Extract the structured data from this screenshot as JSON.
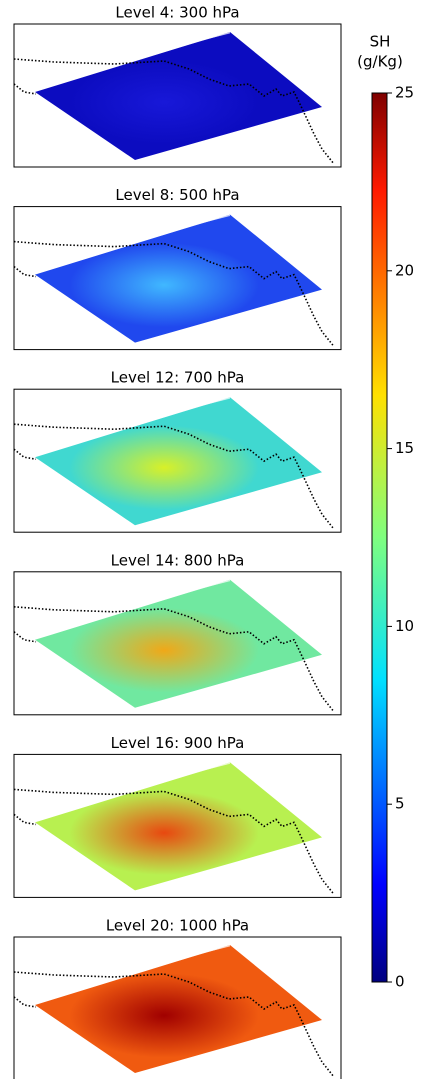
{
  "chart_data": {
    "type": "heatmap-panels",
    "panels": [
      {
        "title": "Level 4: 300 hPa"
      },
      {
        "title": "Level 8: 500 hPa"
      },
      {
        "title": "Level 12: 700 hPa"
      },
      {
        "title": "Level 14: 800 hPa"
      },
      {
        "title": "Level 16: 900 hPa"
      },
      {
        "title": "Level 20: 1000 hPa"
      }
    ],
    "colorbar": {
      "title": [
        "SH",
        "(g/Kg)"
      ],
      "lim": [
        0,
        25
      ],
      "ticks": [
        0,
        5,
        10,
        15,
        20,
        25
      ]
    }
  }
}
